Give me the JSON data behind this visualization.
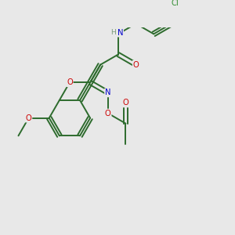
{
  "bg_color": "#e8e8e8",
  "bond_color": "#2d6b2d",
  "atom_colors": {
    "O": "#cc0000",
    "N": "#0000cc",
    "Cl": "#2d8b2d",
    "H": "#7a9a7a"
  },
  "figsize": [
    3.0,
    3.0
  ],
  "dpi": 100,
  "lw": 1.4,
  "fs": 7.2
}
